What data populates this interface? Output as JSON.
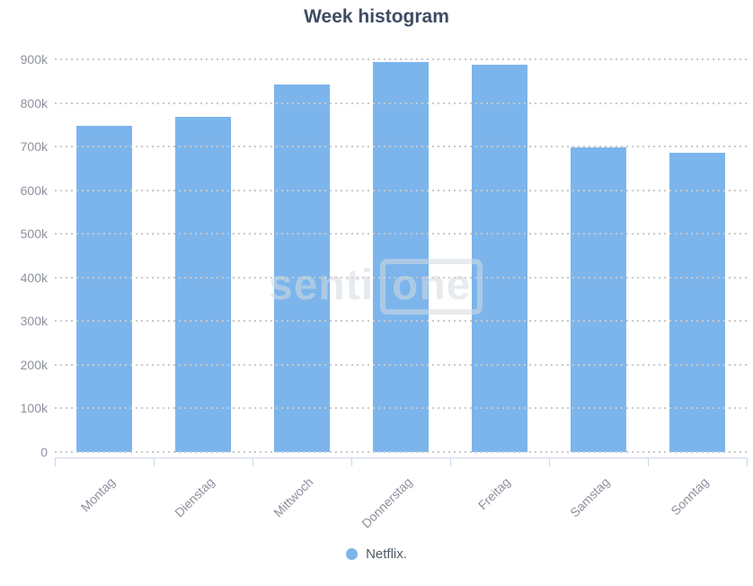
{
  "title": "Week histogram",
  "watermark": {
    "text_left": "senti",
    "text_boxed": "one"
  },
  "legend": {
    "position": "bottom",
    "items": [
      {
        "label": "Netflix.",
        "color": "#7cb5ec"
      }
    ]
  },
  "colors": {
    "bar": "#7cb5ec",
    "bar_border": "#ffffff",
    "title": "#3e4c63",
    "axis_label": "#8d919d",
    "gridline": "#c9c9c9",
    "axis_line": "#ccd6eb",
    "legend_text": "#4e5a66",
    "watermark": "#d4dae0"
  },
  "chart_data": {
    "type": "bar",
    "title": "Week histogram",
    "categories": [
      "Montag",
      "Dienstag",
      "Mittwoch",
      "Donnerstag",
      "Freitag",
      "Samstag",
      "Sonntag"
    ],
    "series": [
      {
        "name": "Netflix.",
        "color": "#7cb5ec",
        "values": [
          750000,
          770000,
          845000,
          895000,
          890000,
          700000,
          687000
        ]
      }
    ],
    "xlabel": "",
    "ylabel": "",
    "ylim": [
      0,
      900000
    ],
    "ytick_step": 100000,
    "ytick_labels": [
      "0",
      "100k",
      "200k",
      "300k",
      "400k",
      "500k",
      "600k",
      "700k",
      "800k",
      "900k"
    ],
    "grid": "horizontal-dotted",
    "x_label_rotation": -45,
    "legend_position": "bottom"
  }
}
